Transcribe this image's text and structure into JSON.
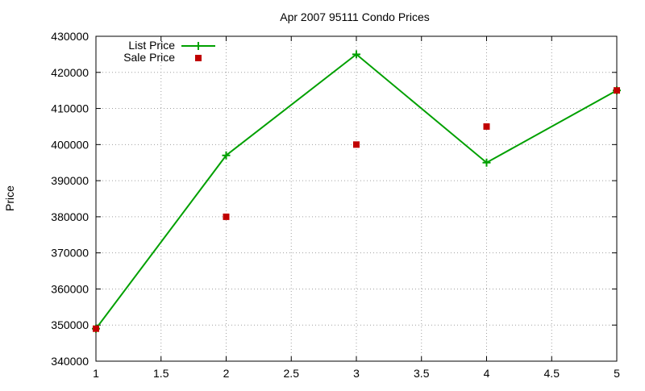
{
  "chart_data": {
    "type": "line",
    "title": "Apr 2007 95111 Condo Prices",
    "xlabel": "",
    "ylabel": "Price",
    "xlim": [
      1,
      5
    ],
    "ylim": [
      340000,
      430000
    ],
    "x_ticks": [
      "1",
      "1.5",
      "2",
      "2.5",
      "3",
      "3.5",
      "4",
      "4.5",
      "5"
    ],
    "y_ticks": [
      "340000",
      "350000",
      "360000",
      "370000",
      "380000",
      "390000",
      "400000",
      "410000",
      "420000",
      "430000"
    ],
    "grid": true,
    "legend_position": "top-left",
    "series": [
      {
        "name": "List Price",
        "style": "line-with-plus-markers",
        "color": "#00a000",
        "x": [
          1,
          2,
          3,
          4,
          5
        ],
        "y": [
          349000,
          397000,
          425000,
          395000,
          415000
        ]
      },
      {
        "name": "Sale Price",
        "style": "square-markers",
        "color": "#c00000",
        "x": [
          1,
          2,
          3,
          4,
          5
        ],
        "y": [
          349000,
          380000,
          400000,
          405000,
          415000
        ]
      }
    ]
  }
}
